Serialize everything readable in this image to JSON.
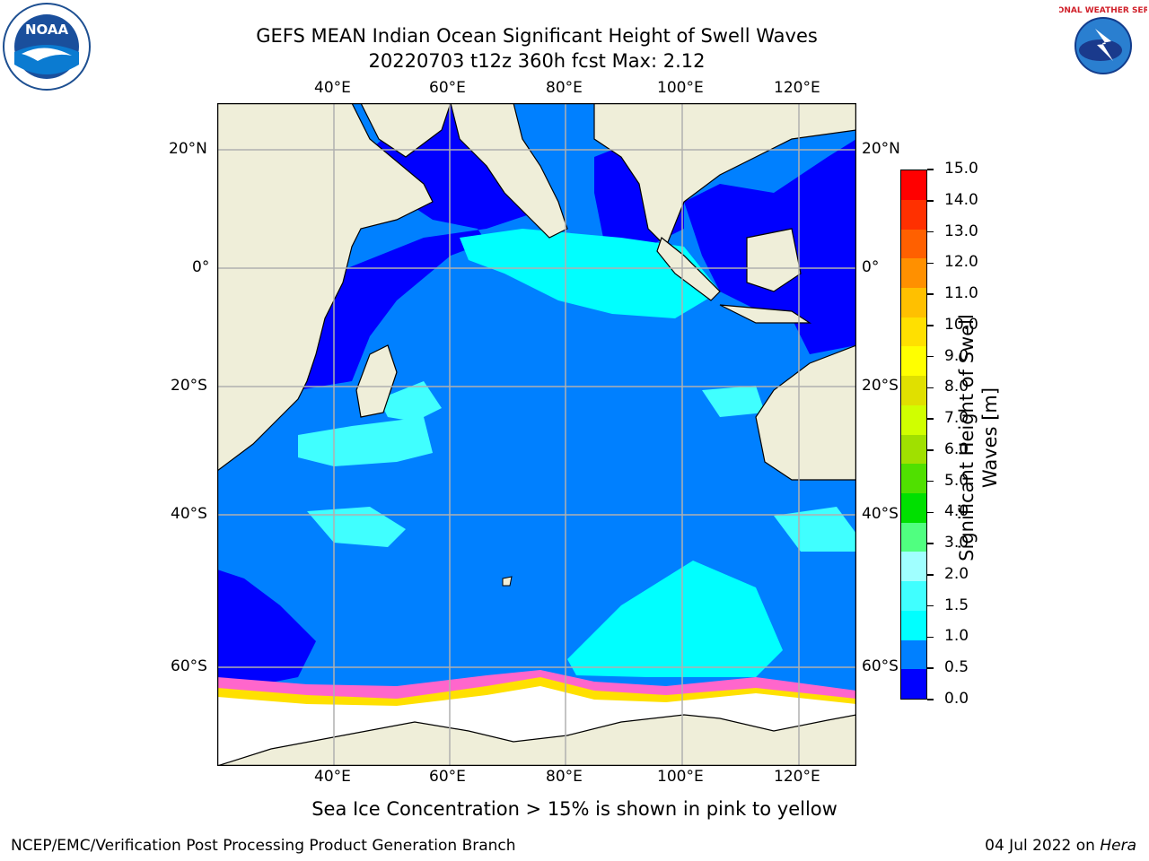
{
  "header": {
    "title_line1": "GEFS MEAN Indian Ocean Significant Height of Swell Waves",
    "title_line2": "20220703 t12z 360h fcst   Max: 2.12"
  },
  "logos": {
    "left": {
      "name": "noaa-logo",
      "text": "NOAA"
    },
    "right": {
      "name": "nws-logo",
      "text": "NATIONAL WEATHER SERVICE"
    }
  },
  "map": {
    "lon_labels": [
      "40°E",
      "60°E",
      "80°E",
      "100°E",
      "120°E"
    ],
    "lat_labels": [
      "20°N",
      "0°",
      "20°S",
      "40°S",
      "60°S"
    ]
  },
  "colorbar": {
    "label": "Significant Height of Swell Waves [m]",
    "ticks": [
      "15.0",
      "14.0",
      "13.0",
      "12.0",
      "11.0",
      "10.0",
      "9.0",
      "8.0",
      "7.0",
      "6.0",
      "5.0",
      "4.0",
      "3.0",
      "2.0",
      "1.5",
      "1.0",
      "0.5",
      "0.0"
    ],
    "colors_bottom_to_top": [
      "#0000ff",
      "#0080ff",
      "#00ffff",
      "#40ffff",
      "#a0ffff",
      "#50ff80",
      "#00e000",
      "#50e000",
      "#a0e000",
      "#d0ff00",
      "#e0e000",
      "#ffff00",
      "#ffe000",
      "#ffc000",
      "#ff9000",
      "#ff6000",
      "#ff3000",
      "#ff0000"
    ]
  },
  "caption": "Sea Ice Concentration > 15% is shown in pink to yellow",
  "footer": {
    "left": "NCEP/EMC/Verification Post Processing Product Generation Branch",
    "right_date": "04 Jul 2022 on ",
    "right_host": "Hera"
  }
}
